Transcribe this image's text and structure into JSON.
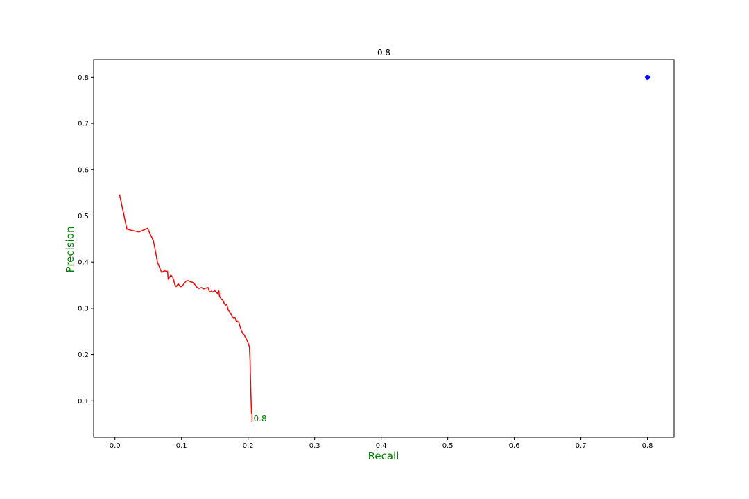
{
  "chart_data": {
    "type": "line",
    "title": "0.8",
    "xlabel": "Recall",
    "ylabel": "Precision",
    "label_color": "#008000",
    "xlim": [
      -0.032,
      0.84
    ],
    "ylim": [
      0.021,
      0.838
    ],
    "xticks": [
      0.0,
      0.1,
      0.2,
      0.3,
      0.4,
      0.5,
      0.6,
      0.7,
      0.8
    ],
    "xtick_labels": [
      "0.0",
      "0.1",
      "0.2",
      "0.3",
      "0.4",
      "0.5",
      "0.6",
      "0.7",
      "0.8"
    ],
    "yticks": [
      0.1,
      0.2,
      0.3,
      0.4,
      0.5,
      0.6,
      0.7,
      0.8
    ],
    "ytick_labels": [
      "0.1",
      "0.2",
      "0.3",
      "0.4",
      "0.5",
      "0.6",
      "0.7",
      "0.8"
    ],
    "grid": false,
    "series": [
      {
        "color": "#ff0000",
        "x": [
          0.007,
          0.018,
          0.036,
          0.049,
          0.058,
          0.064,
          0.07,
          0.074,
          0.079,
          0.08,
          0.084,
          0.087,
          0.09,
          0.092,
          0.095,
          0.098,
          0.1,
          0.103,
          0.107,
          0.11,
          0.114,
          0.118,
          0.122,
          0.126,
          0.13,
          0.133,
          0.137,
          0.14,
          0.142,
          0.145,
          0.147,
          0.15,
          0.152,
          0.154,
          0.156,
          0.157,
          0.16,
          0.162,
          0.164,
          0.166,
          0.168,
          0.17,
          0.172,
          0.174,
          0.176,
          0.178,
          0.18,
          0.182,
          0.184,
          0.186,
          0.188,
          0.19,
          0.192,
          0.194,
          0.196,
          0.198,
          0.2,
          0.201,
          0.202,
          0.203,
          0.203,
          0.204,
          0.204,
          0.205,
          0.205,
          0.206,
          0.206
        ],
        "y": [
          0.546,
          0.471,
          0.465,
          0.473,
          0.445,
          0.399,
          0.378,
          0.381,
          0.38,
          0.363,
          0.372,
          0.367,
          0.351,
          0.347,
          0.353,
          0.347,
          0.347,
          0.352,
          0.359,
          0.36,
          0.357,
          0.356,
          0.347,
          0.343,
          0.345,
          0.342,
          0.344,
          0.345,
          0.335,
          0.337,
          0.335,
          0.338,
          0.335,
          0.332,
          0.338,
          0.326,
          0.319,
          0.318,
          0.311,
          0.307,
          0.309,
          0.296,
          0.293,
          0.289,
          0.282,
          0.279,
          0.281,
          0.273,
          0.272,
          0.27,
          0.26,
          0.252,
          0.245,
          0.243,
          0.237,
          0.232,
          0.225,
          0.221,
          0.217,
          0.183,
          0.18,
          0.13,
          0.127,
          0.078,
          0.075,
          0.07,
          0.054
        ]
      }
    ],
    "point": {
      "x": 0.8,
      "y": 0.8,
      "color": "#0000ff"
    },
    "annotation": {
      "text": "0.8",
      "x": 0.206,
      "y": 0.054
    }
  }
}
